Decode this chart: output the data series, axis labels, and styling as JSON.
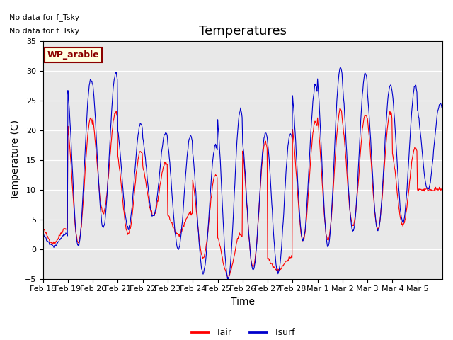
{
  "title": "Temperatures",
  "ylabel": "Temperature (C)",
  "xlabel": "Time",
  "ylim": [
    -5,
    35
  ],
  "yticks": [
    -5,
    0,
    5,
    10,
    15,
    20,
    25,
    30,
    35
  ],
  "xtick_labels": [
    "Feb 18",
    "Feb 19",
    "Feb 20",
    "Feb 21",
    "Feb 22",
    "Feb 23",
    "Feb 24",
    "Feb 25",
    "Feb 26",
    "Feb 27",
    "Feb 28",
    "Mar 1",
    "Mar 2",
    "Mar 3",
    "Mar 4",
    "Mar 5"
  ],
  "annotation1": "No data for f_Tsky",
  "annotation2": "No data for f_Tsky",
  "wp_label": "WP_arable",
  "tair_color": "#FF0000",
  "tsurf_color": "#0000CC",
  "bg_color": "#E8E8E8",
  "legend_tair": "Tair",
  "legend_tsurf": "Tsurf",
  "title_fontsize": 13,
  "axis_fontsize": 10,
  "tick_fontsize": 8,
  "num_days": 16,
  "points_per_day": 48
}
